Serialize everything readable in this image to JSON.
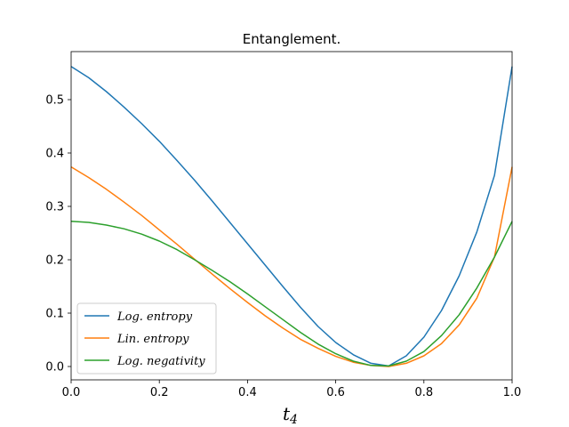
{
  "chart_data": {
    "type": "line",
    "title": "Entanglement.",
    "xlabel": "t",
    "xlabel_sub": "4",
    "xlim": [
      0,
      1
    ],
    "ylim": [
      -0.025,
      0.59
    ],
    "xticks": [
      0.0,
      0.2,
      0.4,
      0.6,
      0.8,
      1.0
    ],
    "xtick_labels": [
      "0.0",
      "0.2",
      "0.4",
      "0.6",
      "0.8",
      "1.0"
    ],
    "yticks": [
      0.0,
      0.1,
      0.2,
      0.3,
      0.4,
      0.5
    ],
    "ytick_labels": [
      "0.0",
      "0.1",
      "0.2",
      "0.3",
      "0.4",
      "0.5"
    ],
    "legend_position": "lower-left",
    "x": [
      0.0,
      0.04,
      0.08,
      0.12,
      0.16,
      0.2,
      0.24,
      0.28,
      0.32,
      0.36,
      0.4,
      0.44,
      0.48,
      0.52,
      0.56,
      0.6,
      0.64,
      0.68,
      0.72,
      0.76,
      0.8,
      0.84,
      0.88,
      0.92,
      0.96,
      1.0
    ],
    "series": [
      {
        "name": "Log. entropy",
        "color": "#1f77b4",
        "values": [
          0.562,
          0.541,
          0.515,
          0.486,
          0.455,
          0.422,
          0.386,
          0.349,
          0.31,
          0.27,
          0.23,
          0.19,
          0.15,
          0.111,
          0.075,
          0.045,
          0.022,
          0.006,
          0.001,
          0.02,
          0.055,
          0.105,
          0.17,
          0.252,
          0.358,
          0.562
        ]
      },
      {
        "name": "Lin. entropy",
        "color": "#ff7f0e",
        "values": [
          0.374,
          0.354,
          0.332,
          0.308,
          0.283,
          0.256,
          0.229,
          0.201,
          0.173,
          0.146,
          0.12,
          0.095,
          0.072,
          0.051,
          0.034,
          0.019,
          0.008,
          0.002,
          0.0,
          0.006,
          0.02,
          0.043,
          0.078,
          0.128,
          0.205,
          0.374
        ]
      },
      {
        "name": "Log. negativity",
        "color": "#2ca02c",
        "values": [
          0.272,
          0.27,
          0.265,
          0.258,
          0.248,
          0.235,
          0.219,
          0.2,
          0.18,
          0.159,
          0.136,
          0.112,
          0.088,
          0.064,
          0.042,
          0.024,
          0.01,
          0.002,
          0.001,
          0.01,
          0.028,
          0.058,
          0.097,
          0.147,
          0.205,
          0.272
        ]
      }
    ]
  }
}
